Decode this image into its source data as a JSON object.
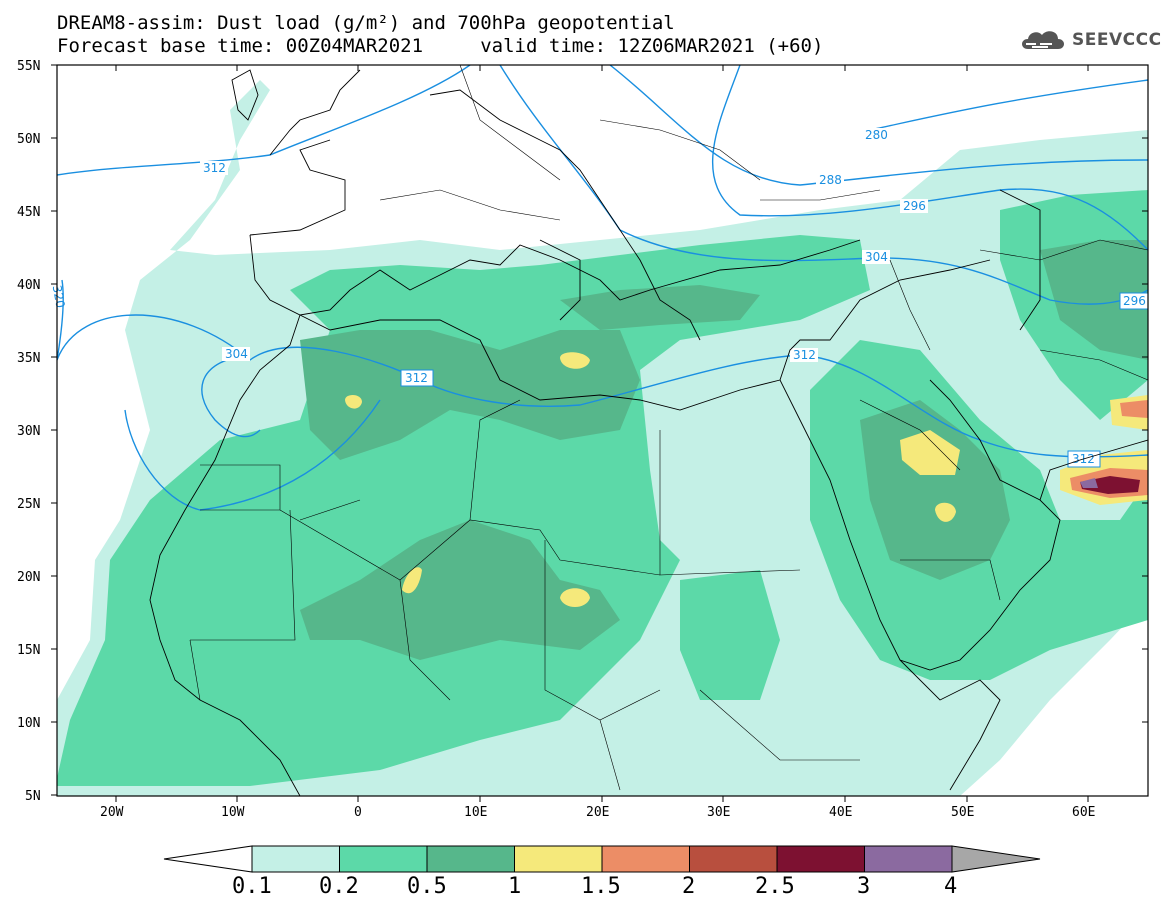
{
  "title": {
    "line1": "DREAM8-assim: Dust load (g/m²) and 700hPa geopotential",
    "line2": "Forecast base time: 00Z04MAR2021     valid time: 12Z06MAR2021 (+60)"
  },
  "logo": {
    "text": "SEEVCCC",
    "icon": "cloud-icon"
  },
  "map": {
    "lat_labels": [
      "55N",
      "50N",
      "45N",
      "40N",
      "35N",
      "30N",
      "25N",
      "20N",
      "15N",
      "10N",
      "5N"
    ],
    "lon_labels": [
      "20W",
      "10W",
      "0",
      "10E",
      "20E",
      "30E",
      "40E",
      "50E",
      "60E"
    ],
    "contour_labels": [
      "312",
      "280",
      "288",
      "296",
      "304",
      "304",
      "312",
      "312",
      "296",
      "312",
      "320"
    ],
    "contour_color": "#1a8fe0"
  },
  "colorbar": {
    "levels": [
      "0.1",
      "0.2",
      "0.5",
      "1",
      "1.5",
      "2",
      "2.5",
      "3",
      "4"
    ],
    "colors": [
      "#c4f0e6",
      "#5cd9a8",
      "#56b78b",
      "#f5e97b",
      "#ec8d66",
      "#b84f3e",
      "#7d1131",
      "#8b6aa0",
      "#a7a7a7"
    ]
  }
}
